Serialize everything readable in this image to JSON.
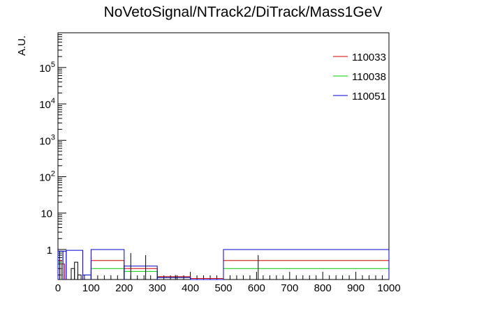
{
  "chart_data": {
    "type": "line",
    "title": "NoVetoSignal/NTrack2/DiTrack/Mass1GeV",
    "xlabel": "",
    "ylabel": "A.U.",
    "xlim": [
      0,
      1000
    ],
    "ylim": [
      0.15,
      900000
    ],
    "yscale": "log",
    "legend_position": "top-right",
    "x_ticks": [
      "0",
      "100",
      "200",
      "300",
      "400",
      "500",
      "600",
      "700",
      "800",
      "900",
      "1000"
    ],
    "y_ticks": [
      {
        "value": 1,
        "label": "1"
      },
      {
        "value": 10,
        "label": "10"
      },
      {
        "value": 100,
        "label": "10",
        "exp": "2"
      },
      {
        "value": 1000,
        "label": "10",
        "exp": "3"
      },
      {
        "value": 10000,
        "label": "10",
        "exp": "4"
      },
      {
        "value": 100000,
        "label": "10",
        "exp": "5"
      }
    ],
    "series": [
      {
        "name": "110033",
        "color": "#cc0000",
        "bins": [
          [
            0,
            10,
            0.5
          ],
          [
            10,
            20,
            0.4
          ],
          [
            100,
            200,
            0.5
          ],
          [
            200,
            300,
            0.3
          ],
          [
            300,
            400,
            0.18
          ],
          [
            400,
            500,
            0.16
          ],
          [
            500,
            1000,
            0.5
          ]
        ]
      },
      {
        "name": "110038",
        "color": "#00cc00",
        "bins": [
          [
            0,
            10,
            0.45
          ],
          [
            100,
            200,
            0.3
          ],
          [
            200,
            300,
            0.25
          ],
          [
            300,
            400,
            0.17
          ],
          [
            500,
            1000,
            0.3
          ]
        ]
      },
      {
        "name": "110051",
        "color": "#0000cc",
        "bins": [
          [
            0,
            5,
            0.9
          ],
          [
            5,
            15,
            0.9
          ],
          [
            15,
            25,
            0.9
          ],
          [
            25,
            75,
            0.95
          ],
          [
            75,
            100,
            0.2
          ],
          [
            100,
            200,
            1.0
          ],
          [
            200,
            300,
            0.35
          ],
          [
            300,
            400,
            0.17
          ],
          [
            400,
            500,
            0.15
          ],
          [
            500,
            1000,
            1.0
          ]
        ]
      },
      {
        "name": "",
        "color": "#000000",
        "bins": [
          [
            40,
            50,
            0.3
          ],
          [
            50,
            60,
            0.45
          ],
          [
            60,
            70,
            0.2
          ]
        ]
      }
    ],
    "error_bars": [
      {
        "x": 220,
        "y_low": 0.15,
        "y_high": 0.8
      },
      {
        "x": 265,
        "y_low": 0.15,
        "y_high": 0.7
      },
      {
        "x": 355,
        "y_low": 0.15,
        "y_high": 0.2
      },
      {
        "x": 605,
        "y_low": 0.15,
        "y_high": 0.7
      }
    ]
  }
}
